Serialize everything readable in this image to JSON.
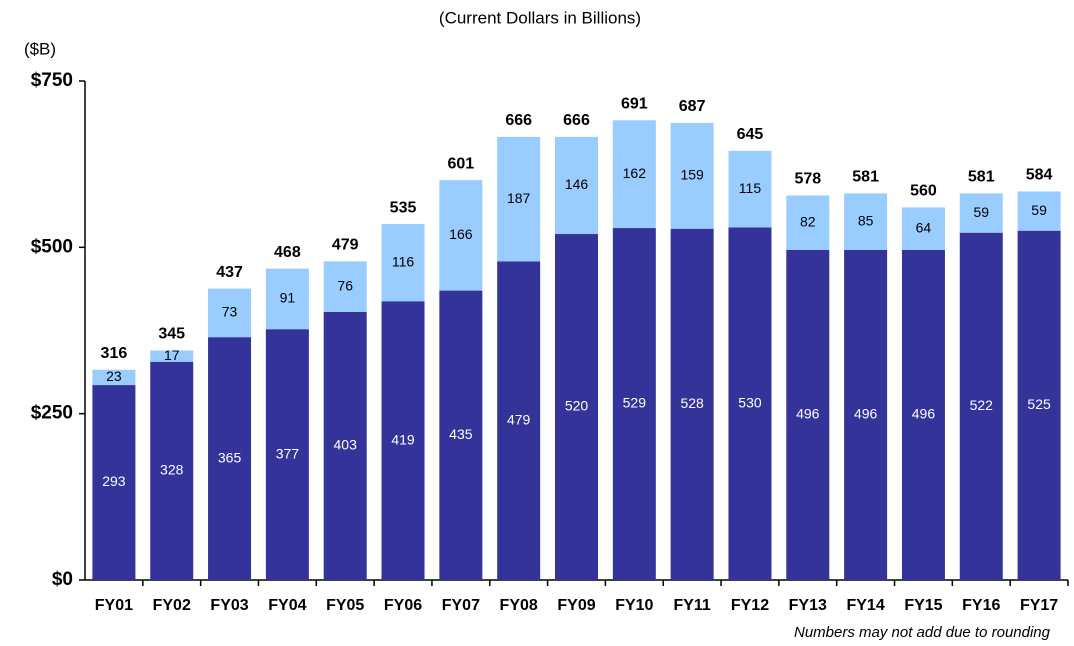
{
  "chart_data": {
    "type": "stacked_bar",
    "subtitle": "(Current Dollars in Billions)",
    "y_label": "($B)",
    "footnote": "Numbers may not add due to rounding",
    "categories": [
      "FY01",
      "FY02",
      "FY03",
      "FY04",
      "FY05",
      "FY06",
      "FY07",
      "FY08",
      "FY09",
      "FY10",
      "FY11",
      "FY12",
      "FY13",
      "FY14",
      "FY15",
      "FY16",
      "FY17"
    ],
    "series": [
      {
        "color": "#333399",
        "label_color": "#ffffff",
        "values": [
          293,
          328,
          365,
          377,
          403,
          419,
          435,
          479,
          520,
          529,
          528,
          530,
          496,
          496,
          496,
          522,
          525
        ]
      },
      {
        "color": "#99ccff",
        "label_color": "#000000",
        "values": [
          23,
          17,
          73,
          91,
          76,
          116,
          166,
          187,
          146,
          162,
          159,
          115,
          82,
          85,
          64,
          59,
          59
        ]
      }
    ],
    "totals": [
      316,
      345,
      437,
      468,
      479,
      535,
      601,
      666,
      666,
      691,
      687,
      645,
      578,
      581,
      560,
      581,
      584
    ],
    "ylim": [
      0,
      750
    ],
    "yticks": [
      {
        "value": 0,
        "label": "$0"
      },
      {
        "value": 250,
        "label": "$250"
      },
      {
        "value": 500,
        "label": "$500"
      },
      {
        "value": 750,
        "label": "$750"
      }
    ]
  }
}
